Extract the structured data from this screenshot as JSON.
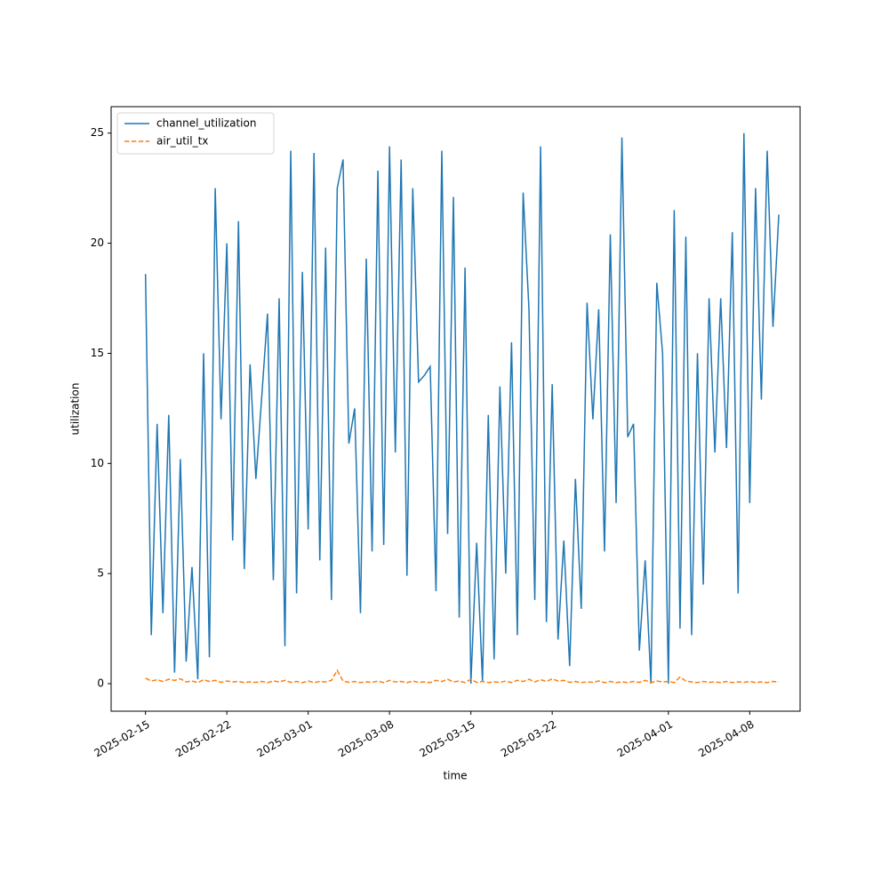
{
  "chart_data": {
    "type": "line",
    "xlabel": "time",
    "ylabel": "utilization",
    "x": [
      "2025-02-15T00:00",
      "2025-02-15T12:00",
      "2025-02-16T00:00",
      "2025-02-16T12:00",
      "2025-02-17T00:00",
      "2025-02-17T12:00",
      "2025-02-18T00:00",
      "2025-02-18T12:00",
      "2025-02-19T00:00",
      "2025-02-19T12:00",
      "2025-02-20T00:00",
      "2025-02-20T12:00",
      "2025-02-21T00:00",
      "2025-02-21T12:00",
      "2025-02-22T00:00",
      "2025-02-22T12:00",
      "2025-02-23T00:00",
      "2025-02-23T12:00",
      "2025-02-24T00:00",
      "2025-02-24T12:00",
      "2025-02-25T00:00",
      "2025-02-25T12:00",
      "2025-02-26T00:00",
      "2025-02-26T12:00",
      "2025-02-27T00:00",
      "2025-02-27T12:00",
      "2025-02-28T00:00",
      "2025-02-28T12:00",
      "2025-03-01T00:00",
      "2025-03-01T12:00",
      "2025-03-02T00:00",
      "2025-03-02T12:00",
      "2025-03-03T00:00",
      "2025-03-03T12:00",
      "2025-03-04T00:00",
      "2025-03-04T12:00",
      "2025-03-05T00:00",
      "2025-03-05T12:00",
      "2025-03-06T00:00",
      "2025-03-06T12:00",
      "2025-03-07T00:00",
      "2025-03-07T12:00",
      "2025-03-08T00:00",
      "2025-03-08T12:00",
      "2025-03-09T00:00",
      "2025-03-09T12:00",
      "2025-03-10T00:00",
      "2025-03-10T12:00",
      "2025-03-11T00:00",
      "2025-03-11T12:00",
      "2025-03-12T00:00",
      "2025-03-12T12:00",
      "2025-03-13T00:00",
      "2025-03-13T12:00",
      "2025-03-14T00:00",
      "2025-03-14T12:00",
      "2025-03-15T00:00",
      "2025-03-15T12:00",
      "2025-03-16T00:00",
      "2025-03-16T12:00",
      "2025-03-17T00:00",
      "2025-03-17T12:00",
      "2025-03-18T00:00",
      "2025-03-18T12:00",
      "2025-03-19T00:00",
      "2025-03-19T12:00",
      "2025-03-20T00:00",
      "2025-03-20T12:00",
      "2025-03-21T00:00",
      "2025-03-21T12:00",
      "2025-03-22T00:00",
      "2025-03-22T12:00",
      "2025-03-23T00:00",
      "2025-03-23T12:00",
      "2025-03-24T00:00",
      "2025-03-24T12:00",
      "2025-03-25T00:00",
      "2025-03-25T12:00",
      "2025-03-26T00:00",
      "2025-03-26T12:00",
      "2025-03-27T00:00",
      "2025-03-27T12:00",
      "2025-03-28T00:00",
      "2025-03-28T12:00",
      "2025-03-29T00:00",
      "2025-03-29T12:00",
      "2025-03-30T00:00",
      "2025-03-30T12:00",
      "2025-03-31T00:00",
      "2025-03-31T12:00",
      "2025-04-01T00:00",
      "2025-04-01T12:00",
      "2025-04-02T00:00",
      "2025-04-02T12:00",
      "2025-04-03T00:00",
      "2025-04-03T12:00",
      "2025-04-04T00:00",
      "2025-04-04T12:00",
      "2025-04-05T00:00",
      "2025-04-05T12:00",
      "2025-04-06T00:00",
      "2025-04-06T12:00",
      "2025-04-07T00:00",
      "2025-04-07T12:00",
      "2025-04-08T00:00",
      "2025-04-08T12:00",
      "2025-04-09T00:00",
      "2025-04-09T12:00",
      "2025-04-10T00:00",
      "2025-04-10T12:00"
    ],
    "series": [
      {
        "name": "channel_utilization",
        "color": "#1f77b4",
        "dashed": false,
        "values": [
          18.6,
          2.2,
          11.8,
          3.2,
          12.2,
          0.5,
          10.2,
          1.0,
          5.3,
          0.2,
          15.0,
          1.2,
          22.5,
          12.0,
          20.0,
          6.5,
          21.0,
          5.2,
          14.5,
          9.3,
          13.0,
          16.8,
          4.7,
          17.5,
          1.7,
          24.2,
          4.1,
          18.7,
          7.0,
          24.1,
          5.6,
          19.8,
          3.8,
          22.5,
          23.8,
          10.9,
          12.5,
          3.2,
          19.3,
          6.0,
          23.3,
          6.3,
          24.4,
          10.5,
          23.8,
          4.9,
          22.5,
          13.7,
          14.0,
          14.4,
          4.2,
          24.2,
          6.8,
          22.1,
          3.0,
          18.9,
          0.0,
          6.4,
          0.1,
          12.2,
          1.1,
          13.5,
          5.0,
          15.5,
          2.2,
          22.3,
          17.0,
          3.8,
          24.4,
          2.8,
          13.6,
          2.0,
          6.5,
          0.8,
          9.3,
          3.4,
          17.3,
          12.0,
          17.0,
          6.0,
          20.4,
          8.2,
          24.8,
          11.2,
          11.8,
          1.5,
          5.6,
          0.0,
          18.2,
          15.0,
          0.0,
          21.5,
          2.5,
          20.3,
          2.2,
          15.0,
          4.5,
          17.5,
          10.5,
          17.5,
          10.7,
          20.5,
          4.1,
          25.0,
          8.2,
          22.5,
          12.9,
          24.2,
          16.2,
          21.3
        ]
      },
      {
        "name": "air_util_tx",
        "color": "#ff7f0e",
        "dashed": true,
        "values": [
          0.25,
          0.12,
          0.18,
          0.1,
          0.2,
          0.15,
          0.22,
          0.08,
          0.12,
          0.05,
          0.18,
          0.1,
          0.15,
          0.06,
          0.12,
          0.08,
          0.1,
          0.05,
          0.08,
          0.06,
          0.1,
          0.05,
          0.12,
          0.08,
          0.15,
          0.06,
          0.1,
          0.05,
          0.12,
          0.05,
          0.1,
          0.08,
          0.15,
          0.6,
          0.12,
          0.06,
          0.1,
          0.05,
          0.08,
          0.06,
          0.12,
          0.05,
          0.15,
          0.08,
          0.1,
          0.05,
          0.12,
          0.06,
          0.08,
          0.05,
          0.15,
          0.1,
          0.2,
          0.08,
          0.12,
          0.05,
          0.2,
          0.06,
          0.1,
          0.05,
          0.08,
          0.06,
          0.12,
          0.05,
          0.15,
          0.1,
          0.2,
          0.08,
          0.18,
          0.1,
          0.22,
          0.12,
          0.15,
          0.06,
          0.1,
          0.05,
          0.08,
          0.06,
          0.12,
          0.05,
          0.1,
          0.05,
          0.08,
          0.05,
          0.1,
          0.06,
          0.15,
          0.05,
          0.12,
          0.08,
          0.1,
          0.05,
          0.3,
          0.12,
          0.08,
          0.05,
          0.1,
          0.06,
          0.08,
          0.05,
          0.1,
          0.05,
          0.08,
          0.06,
          0.1,
          0.05,
          0.08,
          0.05,
          0.1,
          0.08
        ]
      }
    ],
    "xlim": [
      "2025-02-12T01:00",
      "2025-04-12T08:00"
    ],
    "xticks": [
      "2025-02-15",
      "2025-02-22",
      "2025-03-01",
      "2025-03-08",
      "2025-03-15",
      "2025-03-22",
      "2025-04-01",
      "2025-04-08"
    ],
    "ylim": [
      -1.25,
      26.2
    ],
    "yticks": [
      0,
      5,
      10,
      15,
      20,
      25
    ],
    "legend": "upper left"
  }
}
